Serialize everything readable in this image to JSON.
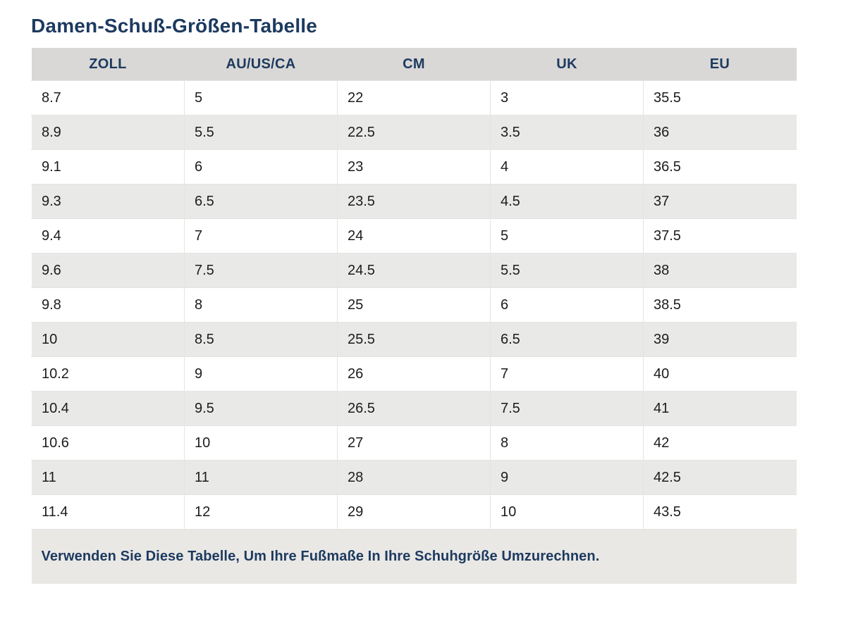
{
  "page": {
    "title": "Damen-Schuß-Größen-Tabelle",
    "footnote": "Verwenden Sie Diese Tabelle, Um Ihre Fußmaße In Ihre Schuhgröße Umzurechnen."
  },
  "chart_data": {
    "type": "table",
    "title": "Damen-Schuß-Größen-Tabelle",
    "columns": [
      "ZOLL",
      "AU/US/CA",
      "CM",
      "UK",
      "EU"
    ],
    "rows": [
      [
        "8.7",
        "5",
        "22",
        "3",
        "35.5"
      ],
      [
        "8.9",
        "5.5",
        "22.5",
        "3.5",
        "36"
      ],
      [
        "9.1",
        "6",
        "23",
        "4",
        "36.5"
      ],
      [
        "9.3",
        "6.5",
        "23.5",
        "4.5",
        "37"
      ],
      [
        "9.4",
        "7",
        "24",
        "5",
        "37.5"
      ],
      [
        "9.6",
        "7.5",
        "24.5",
        "5.5",
        "38"
      ],
      [
        "9.8",
        "8",
        "25",
        "6",
        "38.5"
      ],
      [
        "10",
        "8.5",
        "25.5",
        "6.5",
        "39"
      ],
      [
        "10.2",
        "9",
        "26",
        "7",
        "40"
      ],
      [
        "10.4",
        "9.5",
        "26.5",
        "7.5",
        "41"
      ],
      [
        "10.6",
        "10",
        "27",
        "8",
        "42"
      ],
      [
        "11",
        "11",
        "28",
        "9",
        "42.5"
      ],
      [
        "11.4",
        "12",
        "29",
        "10",
        "43.5"
      ]
    ],
    "legend": null,
    "notes": "Verwenden Sie Diese Tabelle, Um Ihre Fußmaße In Ihre Schuhgröße Umzurechnen."
  },
  "colors": {
    "heading_text": "#1d3a5f",
    "header_row_bg": "#d9d8d6",
    "alt_row_bg": "#e9e9e7",
    "footer_bg": "#e9e8e5",
    "body_text": "#1c1c1e",
    "page_bg": "#ffffff"
  }
}
